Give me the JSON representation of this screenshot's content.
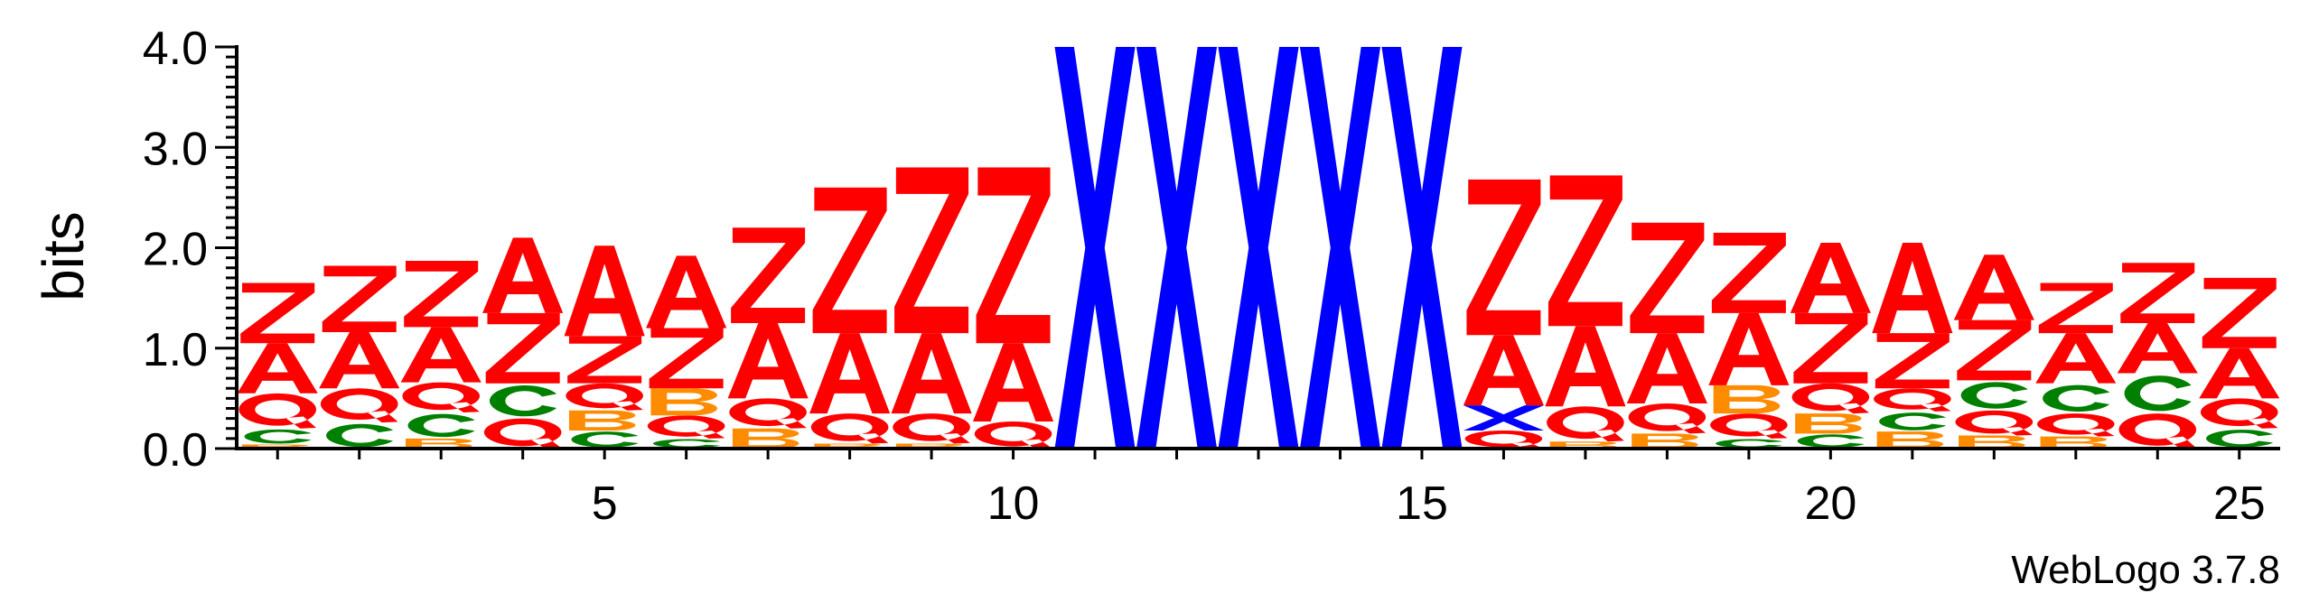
{
  "chart_data": {
    "type": "sequence-logo",
    "ylabel": "bits",
    "ylim": [
      0,
      4.0
    ],
    "y_ticks": [
      "0.0",
      "1.0",
      "2.0",
      "3.0",
      "4.0"
    ],
    "x_ticks": [
      "5",
      "10",
      "15",
      "20",
      "25"
    ],
    "x_tick_positions": [
      5,
      10,
      15,
      20,
      25
    ],
    "num_positions": 25,
    "colors": {
      "Z": "#ff0000",
      "Q": "#ff0000",
      "A": "#ff0000",
      "X": "#0000ff",
      "C": "#008000",
      "B": "#ff8c00"
    },
    "positions": [
      {
        "pos": 1,
        "stack": [
          [
            "B",
            0.04
          ],
          [
            "C",
            0.16
          ],
          [
            "Q",
            0.35
          ],
          [
            "A",
            0.5
          ],
          [
            "Z",
            0.6
          ]
        ]
      },
      {
        "pos": 2,
        "stack": [
          [
            "C",
            0.26
          ],
          [
            "Q",
            0.34
          ],
          [
            "A",
            0.56
          ],
          [
            "Z",
            0.66
          ]
        ]
      },
      {
        "pos": 3,
        "stack": [
          [
            "B",
            0.1
          ],
          [
            "C",
            0.26
          ],
          [
            "Q",
            0.3
          ],
          [
            "A",
            0.55
          ],
          [
            "Z",
            0.66
          ]
        ]
      },
      {
        "pos": 4,
        "stack": [
          [
            "Q",
            0.3
          ],
          [
            "C",
            0.35
          ],
          [
            "Z",
            0.7
          ],
          [
            "A",
            0.75
          ]
        ]
      },
      {
        "pos": 5,
        "stack": [
          [
            "C",
            0.18
          ],
          [
            "B",
            0.2
          ],
          [
            "Q",
            0.27
          ],
          [
            "Z",
            0.47
          ],
          [
            "A",
            0.9
          ]
        ]
      },
      {
        "pos": 6,
        "stack": [
          [
            "C",
            0.1
          ],
          [
            "Q",
            0.23
          ],
          [
            "B",
            0.27
          ],
          [
            "Z",
            0.6
          ],
          [
            "A",
            0.72
          ]
        ]
      },
      {
        "pos": 7,
        "stack": [
          [
            "B",
            0.2
          ],
          [
            "Q",
            0.3
          ],
          [
            "A",
            0.75
          ],
          [
            "Z",
            0.95
          ]
        ]
      },
      {
        "pos": 8,
        "stack": [
          [
            "B",
            0.05
          ],
          [
            "Q",
            0.3
          ],
          [
            "A",
            0.8
          ],
          [
            "Z",
            1.45
          ]
        ]
      },
      {
        "pos": 9,
        "stack": [
          [
            "B",
            0.05
          ],
          [
            "Q",
            0.3
          ],
          [
            "A",
            0.8
          ],
          [
            "Z",
            1.65
          ]
        ]
      },
      {
        "pos": 10,
        "stack": [
          [
            "Q",
            0.27
          ],
          [
            "A",
            0.78
          ],
          [
            "Z",
            1.75
          ]
        ]
      },
      {
        "pos": 11,
        "stack": [
          [
            "X",
            4.0
          ]
        ]
      },
      {
        "pos": 12,
        "stack": [
          [
            "X",
            4.0
          ]
        ]
      },
      {
        "pos": 13,
        "stack": [
          [
            "X",
            4.0
          ]
        ]
      },
      {
        "pos": 14,
        "stack": [
          [
            "X",
            4.0
          ]
        ]
      },
      {
        "pos": 15,
        "stack": [
          [
            "X",
            4.0
          ]
        ]
      },
      {
        "pos": 16,
        "stack": [
          [
            "Q",
            0.18
          ],
          [
            "X",
            0.25
          ],
          [
            "A",
            0.7
          ],
          [
            "Z",
            1.55
          ]
        ]
      },
      {
        "pos": 17,
        "stack": [
          [
            "B",
            0.07
          ],
          [
            "Q",
            0.35
          ],
          [
            "A",
            0.8
          ],
          [
            "Z",
            1.5
          ]
        ]
      },
      {
        "pos": 18,
        "stack": [
          [
            "B",
            0.15
          ],
          [
            "Q",
            0.3
          ],
          [
            "A",
            0.7
          ],
          [
            "Z",
            1.1
          ]
        ]
      },
      {
        "pos": 19,
        "stack": [
          [
            "C",
            0.1
          ],
          [
            "Q",
            0.25
          ],
          [
            "B",
            0.28
          ],
          [
            "A",
            0.72
          ],
          [
            "Z",
            0.8
          ]
        ]
      },
      {
        "pos": 20,
        "stack": [
          [
            "C",
            0.15
          ],
          [
            "B",
            0.2
          ],
          [
            "Q",
            0.3
          ],
          [
            "Z",
            0.7
          ],
          [
            "A",
            0.7
          ]
        ]
      },
      {
        "pos": 21,
        "stack": [
          [
            "B",
            0.17
          ],
          [
            "C",
            0.2
          ],
          [
            "Q",
            0.23
          ],
          [
            "Z",
            0.55
          ],
          [
            "A",
            0.9
          ]
        ]
      },
      {
        "pos": 22,
        "stack": [
          [
            "B",
            0.13
          ],
          [
            "Q",
            0.25
          ],
          [
            "C",
            0.3
          ],
          [
            "Z",
            0.6
          ],
          [
            "A",
            0.65
          ]
        ]
      },
      {
        "pos": 23,
        "stack": [
          [
            "B",
            0.12
          ],
          [
            "Q",
            0.23
          ],
          [
            "C",
            0.3
          ],
          [
            "A",
            0.5
          ],
          [
            "Z",
            0.5
          ]
        ]
      },
      {
        "pos": 24,
        "stack": [
          [
            "Q",
            0.35
          ],
          [
            "C",
            0.4
          ],
          [
            "A",
            0.5
          ],
          [
            "Z",
            0.6
          ]
        ]
      },
      {
        "pos": 25,
        "stack": [
          [
            "C",
            0.2
          ],
          [
            "Q",
            0.3
          ],
          [
            "A",
            0.5
          ],
          [
            "Z",
            0.7
          ]
        ]
      }
    ]
  },
  "footer": {
    "credit": "WebLogo 3.7.8"
  }
}
